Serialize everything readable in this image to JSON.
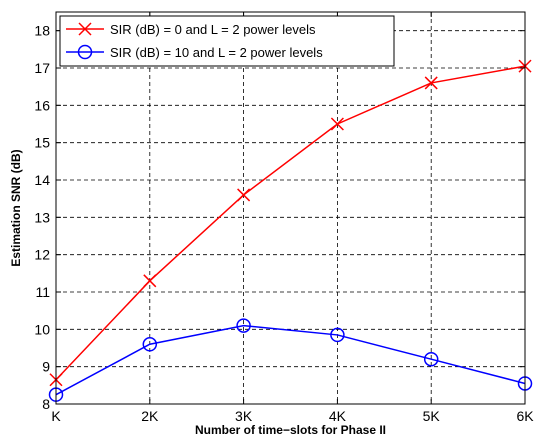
{
  "chart_data": {
    "type": "line",
    "categories": [
      "K",
      "2K",
      "3K",
      "4K",
      "5K",
      "6K"
    ],
    "xlabel": "Number of time−slots for Phase II",
    "ylabel": "Estimation SNR (dB)",
    "ylim": [
      8,
      18.5
    ],
    "yticks": [
      8,
      9,
      10,
      11,
      12,
      13,
      14,
      15,
      16,
      17,
      18
    ],
    "grid": true,
    "legend_position": "top-left",
    "series": [
      {
        "name": "SIR (dB) = 0 and L = 2 power levels",
        "color": "#ff0000",
        "marker": "x",
        "values": [
          8.65,
          11.3,
          13.6,
          15.5,
          16.6,
          17.05
        ]
      },
      {
        "name": "SIR (dB) = 10 and L = 2 power levels",
        "color": "#0000ff",
        "marker": "o",
        "values": [
          8.25,
          9.6,
          10.1,
          9.85,
          9.2,
          8.55
        ]
      }
    ]
  }
}
